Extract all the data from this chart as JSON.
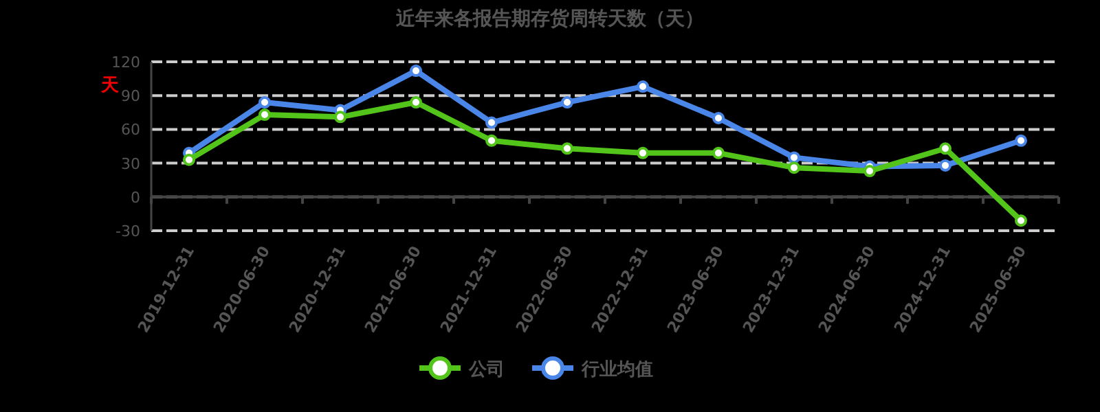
{
  "chart_data": {
    "type": "line",
    "title": "近年来各报告期存货周转天数（天）",
    "ylabel": "天",
    "categories": [
      "2019-12-31",
      "2020-06-30",
      "2020-12-31",
      "2021-06-30",
      "2021-12-31",
      "2022-06-30",
      "2022-12-31",
      "2023-06-30",
      "2023-12-31",
      "2024-06-30",
      "2024-12-31",
      "2025-06-30"
    ],
    "series": [
      {
        "name": "公司",
        "color": "#52c41a",
        "values": [
          33,
          73,
          71,
          84,
          50,
          43,
          39,
          39,
          26,
          23,
          43,
          -21
        ]
      },
      {
        "name": "行业均值",
        "color": "#4a86e8",
        "values": [
          39,
          84,
          77,
          112,
          66,
          84,
          98,
          70,
          35,
          27,
          28,
          50
        ]
      }
    ],
    "ylim": [
      -30,
      120
    ],
    "yticks": [
      -30,
      0,
      30,
      60,
      90,
      120
    ],
    "grid": "y",
    "legend": "bottom",
    "marker": "circle",
    "line_style": "solid"
  }
}
